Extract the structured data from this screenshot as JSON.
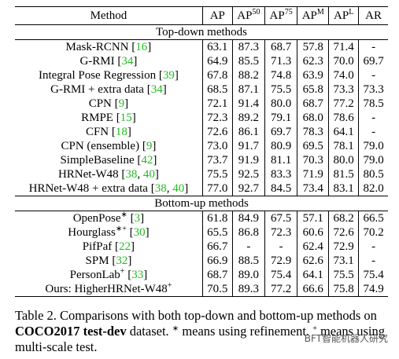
{
  "table": {
    "header": [
      {
        "base": "Method"
      },
      {
        "base": "AP"
      },
      {
        "base": "AP",
        "sup": "50"
      },
      {
        "base": "AP",
        "sup": "75"
      },
      {
        "base": "AP",
        "sup": "M"
      },
      {
        "base": "AP",
        "sup": "L"
      },
      {
        "base": "AR"
      }
    ],
    "sections": [
      {
        "title": "Top-down methods",
        "rows": [
          {
            "name": "Mask-RCNN",
            "cite": "[16]",
            "values": [
              "63.1",
              "87.3",
              "68.7",
              "57.8",
              "71.4",
              "-"
            ]
          },
          {
            "name": "G-RMI",
            "cite": "[34]",
            "values": [
              "64.9",
              "85.5",
              "71.3",
              "62.3",
              "70.0",
              "69.7"
            ]
          },
          {
            "name": "Integral Pose Regression",
            "cite": "[39]",
            "values": [
              "67.8",
              "88.2",
              "74.8",
              "63.9",
              "74.0",
              "-"
            ]
          },
          {
            "name": "G-RMI + extra data",
            "cite": "[34]",
            "values": [
              "68.5",
              "87.1",
              "75.5",
              "65.8",
              "73.3",
              "73.3"
            ]
          },
          {
            "name": "CPN",
            "cite": "[9]",
            "values": [
              "72.1",
              "91.4",
              "80.0",
              "68.7",
              "77.2",
              "78.5"
            ]
          },
          {
            "name": "RMPE",
            "cite": "[15]",
            "values": [
              "72.3",
              "89.2",
              "79.1",
              "68.0",
              "78.6",
              "-"
            ]
          },
          {
            "name": "CFN",
            "cite": "[18]",
            "values": [
              "72.6",
              "86.1",
              "69.7",
              "78.3",
              "64.1",
              "-"
            ]
          },
          {
            "name": "CPN (ensemble)",
            "cite": "[9]",
            "values": [
              "73.0",
              "91.7",
              "80.9",
              "69.5",
              "78.1",
              "79.0"
            ]
          },
          {
            "name": "SimpleBaseline",
            "cite": "[42]",
            "values": [
              "73.7",
              "91.9",
              "81.1",
              "70.3",
              "80.0",
              "79.0"
            ]
          },
          {
            "name": "HRNet-W48",
            "cite": "[38, 40]",
            "values": [
              "75.5",
              "92.5",
              "83.3",
              "71.9",
              "81.5",
              "80.5"
            ]
          },
          {
            "name": "HRNet-W48 + extra data",
            "cite": "[38, 40]",
            "values": [
              "77.0",
              "92.7",
              "84.5",
              "73.4",
              "83.1",
              "82.0"
            ]
          }
        ]
      },
      {
        "title": "Bottom-up methods",
        "rows": [
          {
            "name": "OpenPose",
            "sup": "∗",
            "cite": "[3]",
            "values": [
              "61.8",
              "84.9",
              "67.5",
              "57.1",
              "68.2",
              "66.5"
            ]
          },
          {
            "name": "Hourglass",
            "sup": "∗+",
            "cite": "[30]",
            "values": [
              "65.5",
              "86.8",
              "72.3",
              "60.6",
              "72.6",
              "70.2"
            ]
          },
          {
            "name": "PifPaf",
            "cite": "[22]",
            "values": [
              "66.7",
              "-",
              "-",
              "62.4",
              "72.9",
              "-"
            ]
          },
          {
            "name": "SPM",
            "cite": "[32]",
            "values": [
              "66.9",
              "88.5",
              "72.9",
              "62.6",
              "73.1",
              "-"
            ]
          },
          {
            "name": "PersonLab",
            "sup": "+",
            "cite": "[33]",
            "values": [
              "68.7",
              "89.0",
              "75.4",
              "64.1",
              "75.5",
              "75.4"
            ]
          },
          {
            "name": "Ours: HigherHRNet-W48",
            "sup": "+",
            "values": [
              "70.5",
              "89.3",
              "77.2",
              "66.6",
              "75.8",
              "74.9"
            ]
          }
        ]
      }
    ]
  },
  "caption": [
    {
      "text": "Table 2. Comparisons with both top-down and bottom-up methods on "
    },
    {
      "text": "COCO2017 test-dev",
      "bold": true
    },
    {
      "text": " dataset. "
    },
    {
      "text": "∗",
      "sup": true
    },
    {
      "text": " means using refinement. "
    },
    {
      "text": "+",
      "sup": true
    },
    {
      "text": " means using multi-scale test."
    }
  ],
  "watermark": "BFT智能机器人研究"
}
